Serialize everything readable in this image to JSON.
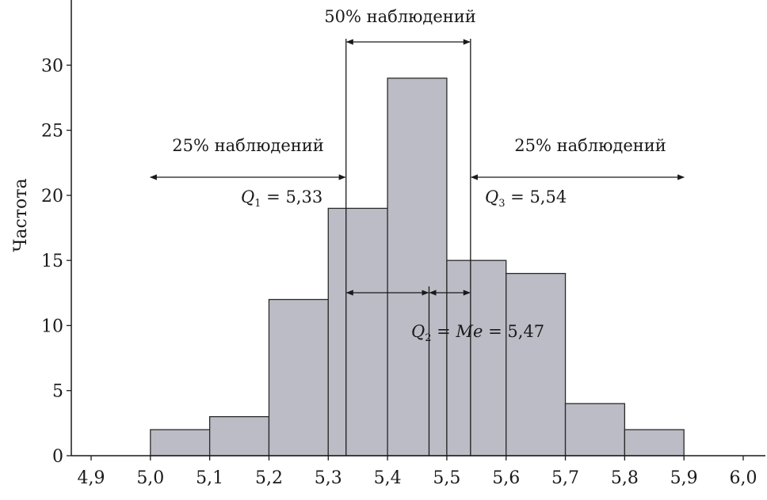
{
  "chart_data": {
    "type": "bar",
    "title": "",
    "xlabel": "",
    "ylabel": "Частота",
    "xlim": [
      4.9,
      6.0
    ],
    "ylim": [
      0,
      33
    ],
    "x_ticks": [
      "4,9",
      "5,0",
      "5,1",
      "5,2",
      "5,3",
      "5,4",
      "5,5",
      "5,6",
      "5,7",
      "5,8",
      "5,9",
      "6,0"
    ],
    "y_ticks": [
      "0",
      "5",
      "10",
      "15",
      "20",
      "25",
      "30"
    ],
    "bins": [
      {
        "from": 5.0,
        "to": 5.1,
        "value": 2
      },
      {
        "from": 5.1,
        "to": 5.2,
        "value": 3
      },
      {
        "from": 5.2,
        "to": 5.3,
        "value": 12
      },
      {
        "from": 5.3,
        "to": 5.4,
        "value": 19
      },
      {
        "from": 5.4,
        "to": 5.5,
        "value": 29
      },
      {
        "from": 5.5,
        "to": 5.6,
        "value": 15
      },
      {
        "from": 5.6,
        "to": 5.7,
        "value": 14
      },
      {
        "from": 5.7,
        "to": 5.8,
        "value": 4
      },
      {
        "from": 5.8,
        "to": 5.9,
        "value": 2
      }
    ],
    "bar_color": "#bcbcc6",
    "quartiles": {
      "q1": {
        "value": 5.33,
        "sym": "Q",
        "sub": "1",
        "text": " = 5,33"
      },
      "q2": {
        "value": 5.47,
        "sym": "Q",
        "sub": "2",
        "mid": " = ",
        "me": "Me",
        "text": " = 5,47"
      },
      "q3": {
        "value": 5.54,
        "sym": "Q",
        "sub": "3",
        "text": " = 5,54"
      }
    },
    "annotations": {
      "left": "25% наблюдений",
      "middle": "50% наблюдений",
      "right": "25% наблюдений"
    }
  }
}
